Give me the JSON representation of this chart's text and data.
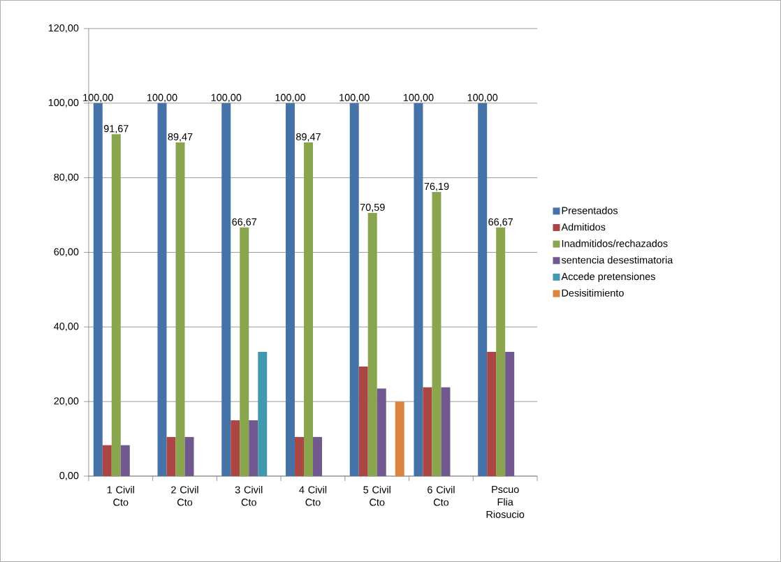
{
  "chart_data": {
    "type": "bar",
    "categories": [
      "1 Civil Cto",
      "2 Civil Cto",
      "3 Civil Cto",
      "4 Civil Cto",
      "5 Civil Cto",
      "6 Civil Cto",
      "Pscuo Flia Riosucio"
    ],
    "series": [
      {
        "name": "Presentados",
        "color": "#4572a7",
        "values": [
          100,
          100,
          100,
          100,
          100,
          100,
          100
        ],
        "value_labels": [
          "100,00",
          "100,00",
          "100,00",
          "100,00",
          "100,00",
          "100,00",
          "100,00"
        ]
      },
      {
        "name": "Admitidos",
        "color": "#aa4643",
        "values": [
          8.3,
          10.5,
          15,
          10.5,
          29.4,
          23.8,
          33.3
        ]
      },
      {
        "name": "Inadmitidos/rechazados",
        "color": "#89a54e",
        "values": [
          91.67,
          89.47,
          66.67,
          89.47,
          70.59,
          76.19,
          66.67
        ],
        "value_labels": [
          "91,67",
          "89,47",
          "66,67",
          "89,47",
          "70,59",
          "76,19",
          "66,67"
        ]
      },
      {
        "name": "sentencia desestimatoria",
        "color": "#71588f",
        "values": [
          8.3,
          10.5,
          15,
          10.5,
          23.5,
          23.8,
          33.3
        ]
      },
      {
        "name": "Accede pretensiones",
        "color": "#4198af",
        "values": [
          null,
          null,
          33.3,
          null,
          null,
          null,
          null
        ]
      },
      {
        "name": "Desisitimiento",
        "color": "#db843d",
        "values": [
          null,
          null,
          null,
          null,
          20,
          null,
          null
        ]
      }
    ],
    "ylim": [
      0,
      120
    ],
    "yticks": [
      {
        "value": 0,
        "label": "0,00"
      },
      {
        "value": 20,
        "label": "20,00"
      },
      {
        "value": 40,
        "label": "40,00"
      },
      {
        "value": 60,
        "label": "60,00"
      },
      {
        "value": 80,
        "label": "80,00"
      },
      {
        "value": 100,
        "label": "100,00"
      },
      {
        "value": 120,
        "label": "120,00"
      }
    ],
    "grid": "y",
    "legend": "right"
  }
}
